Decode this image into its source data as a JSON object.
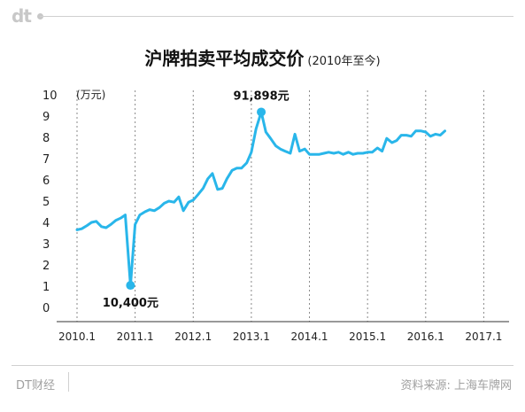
{
  "header": {
    "logo": "dt"
  },
  "title": "沪牌拍卖平均成交价",
  "subtitle": "(2010年至今)",
  "footer": {
    "brand": "DT财经",
    "source": "资料来源: 上海车牌网"
  },
  "colors": {
    "line": "#29b6ea",
    "grid": "#888888"
  },
  "chart_data": {
    "type": "line",
    "title": "沪牌拍卖平均成交价",
    "subtitle": "(2010年至今)",
    "ylabel": "(万元)",
    "xlabel": "",
    "ylim": [
      0,
      10
    ],
    "xlim": [
      2010.0,
      2017.1
    ],
    "y_ticks": [
      "0",
      "1",
      "2",
      "3",
      "4",
      "5",
      "6",
      "7",
      "8",
      "9",
      "10"
    ],
    "x_ticks": [
      {
        "x": 2010.0,
        "label": "2010.1"
      },
      {
        "x": 2011.0,
        "label": "2011.1"
      },
      {
        "x": 2012.0,
        "label": "2012.1"
      },
      {
        "x": 2013.0,
        "label": "2013.1"
      },
      {
        "x": 2014.0,
        "label": "2014.1"
      },
      {
        "x": 2015.0,
        "label": "2015.1"
      },
      {
        "x": 2016.0,
        "label": "2016.1"
      },
      {
        "x": 2017.0,
        "label": "2017.1"
      }
    ],
    "grid": "vertical dashed",
    "series": [
      {
        "values": [
          [
            2010.0,
            3.65
          ],
          [
            2010.08,
            3.7
          ],
          [
            2010.17,
            3.85
          ],
          [
            2010.25,
            4.0
          ],
          [
            2010.33,
            4.05
          ],
          [
            2010.42,
            3.8
          ],
          [
            2010.5,
            3.75
          ],
          [
            2010.58,
            3.9
          ],
          [
            2010.67,
            4.1
          ],
          [
            2010.75,
            4.2
          ],
          [
            2010.83,
            4.35
          ],
          [
            2010.92,
            1.04
          ],
          [
            2011.0,
            3.9
          ],
          [
            2011.08,
            4.35
          ],
          [
            2011.17,
            4.5
          ],
          [
            2011.25,
            4.6
          ],
          [
            2011.33,
            4.55
          ],
          [
            2011.42,
            4.7
          ],
          [
            2011.5,
            4.9
          ],
          [
            2011.58,
            5.0
          ],
          [
            2011.67,
            4.95
          ],
          [
            2011.75,
            5.2
          ],
          [
            2011.83,
            4.55
          ],
          [
            2011.92,
            4.95
          ],
          [
            2012.0,
            5.05
          ],
          [
            2012.08,
            5.3
          ],
          [
            2012.17,
            5.6
          ],
          [
            2012.25,
            6.05
          ],
          [
            2012.33,
            6.3
          ],
          [
            2012.42,
            5.55
          ],
          [
            2012.5,
            5.6
          ],
          [
            2012.58,
            6.05
          ],
          [
            2012.67,
            6.45
          ],
          [
            2012.75,
            6.55
          ],
          [
            2012.83,
            6.55
          ],
          [
            2012.92,
            6.8
          ],
          [
            2013.0,
            7.3
          ],
          [
            2013.08,
            8.4
          ],
          [
            2013.17,
            9.19
          ],
          [
            2013.25,
            8.25
          ],
          [
            2013.33,
            7.95
          ],
          [
            2013.42,
            7.6
          ],
          [
            2013.5,
            7.45
          ],
          [
            2013.58,
            7.35
          ],
          [
            2013.67,
            7.25
          ],
          [
            2013.75,
            8.15
          ],
          [
            2013.83,
            7.35
          ],
          [
            2013.92,
            7.45
          ],
          [
            2014.0,
            7.2
          ],
          [
            2014.08,
            7.2
          ],
          [
            2014.17,
            7.2
          ],
          [
            2014.25,
            7.25
          ],
          [
            2014.33,
            7.3
          ],
          [
            2014.42,
            7.25
          ],
          [
            2014.5,
            7.3
          ],
          [
            2014.58,
            7.2
          ],
          [
            2014.67,
            7.3
          ],
          [
            2014.75,
            7.2
          ],
          [
            2014.83,
            7.25
          ],
          [
            2014.92,
            7.25
          ],
          [
            2015.0,
            7.3
          ],
          [
            2015.08,
            7.3
          ],
          [
            2015.17,
            7.5
          ],
          [
            2015.25,
            7.35
          ],
          [
            2015.33,
            7.95
          ],
          [
            2015.42,
            7.75
          ],
          [
            2015.5,
            7.85
          ],
          [
            2015.58,
            8.1
          ],
          [
            2015.67,
            8.1
          ],
          [
            2015.75,
            8.05
          ],
          [
            2015.83,
            8.3
          ],
          [
            2015.92,
            8.3
          ],
          [
            2016.0,
            8.25
          ],
          [
            2016.08,
            8.05
          ],
          [
            2016.17,
            8.15
          ],
          [
            2016.25,
            8.1
          ],
          [
            2016.33,
            8.3
          ]
        ]
      }
    ],
    "annotations": [
      {
        "label": "91,898元",
        "x": 2013.17,
        "y": 9.19,
        "position": "above"
      },
      {
        "label": "10,400元",
        "x": 2010.92,
        "y": 1.04,
        "position": "below"
      }
    ]
  }
}
